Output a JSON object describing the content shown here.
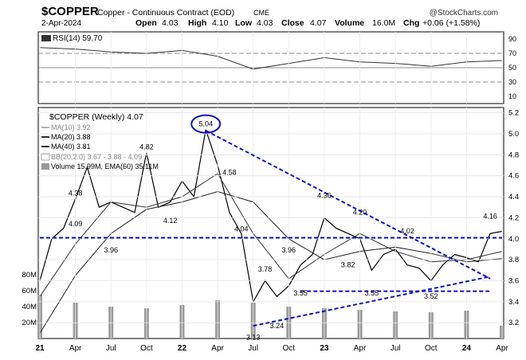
{
  "header": {
    "symbol": "$COPPER",
    "name": "Copper - Continuous Contract (EOD)",
    "exchange": "CME",
    "date": "2-Apr-2024",
    "brand": "@StockCharts.com",
    "quote": {
      "open_label": "Open",
      "open": "4.03",
      "high_label": "High",
      "high": "4.10",
      "low_label": "Low",
      "low": "4.03",
      "close_label": "Close",
      "close": "4.07",
      "volume_label": "Volume",
      "volume": "16.0M",
      "chg_label": "Chg",
      "chg": "+0.06 (+1.58%)"
    }
  },
  "colors": {
    "price": "#000000",
    "ma10": "#b0b0b0",
    "ma20": "#303030",
    "ma40": "#202020",
    "bb": "#a8a8a8",
    "volume": "#9a9a9a",
    "trend": "#1010c8",
    "rsi": "#333333"
  },
  "chart_data": [
    {
      "type": "line",
      "panel": "RSI",
      "legend": "RSI(14) 59.70",
      "ylim": [
        0,
        100
      ],
      "y_ticks": [
        10,
        30,
        50,
        70,
        90
      ],
      "reference_lines": [
        30,
        50,
        70
      ],
      "x": [
        "2021-01",
        "2021-04",
        "2021-07",
        "2021-10",
        "2022-01",
        "2022-04",
        "2022-07",
        "2022-10",
        "2023-01",
        "2023-04",
        "2023-07",
        "2023-10",
        "2024-01",
        "2024-04"
      ],
      "values": [
        78,
        76,
        72,
        70,
        74,
        66,
        48,
        56,
        64,
        58,
        56,
        52,
        58,
        60
      ]
    },
    {
      "type": "line",
      "panel": "price",
      "title": "$COPPER (Weekly) 4.07",
      "ylim": [
        3.05,
        5.25
      ],
      "y_ticks": [
        "3.2",
        "3.4",
        "3.6",
        "3.8",
        "4.0",
        "4.2",
        "4.4",
        "4.6",
        "4.8",
        "5.0",
        "5.2"
      ],
      "x_ticks": [
        "21",
        "Apr",
        "Jul",
        "Oct",
        "22",
        "Apr",
        "Jul",
        "Oct",
        "23",
        "Apr",
        "Jul",
        "Oct",
        "24",
        "Apr"
      ],
      "legend": [
        "$COPPER (Weekly) 4.07",
        "MA(10) 3.92",
        "MA(20) 3.88",
        "MA(40) 3.81",
        "BB(20,2.0) 3.67 - 3.88 - 4.09",
        "Volume 15.99M, EMA(60) 35.11M"
      ],
      "series": [
        {
          "name": "$COPPER (Weekly) 4.07",
          "x": [
            "2021-01",
            "2021-02",
            "2021-03",
            "2021-04",
            "2021-05",
            "2021-06",
            "2021-07",
            "2021-08",
            "2021-09",
            "2021-10",
            "2021-11",
            "2021-12",
            "2022-01",
            "2022-02",
            "2022-03",
            "2022-04",
            "2022-05",
            "2022-06",
            "2022-07",
            "2022-08",
            "2022-09",
            "2022-10",
            "2022-11",
            "2022-12",
            "2023-01",
            "2023-02",
            "2023-03",
            "2023-04",
            "2023-05",
            "2023-06",
            "2023-07",
            "2023-08",
            "2023-09",
            "2023-10",
            "2023-11",
            "2023-12",
            "2024-01",
            "2024-02",
            "2024-03",
            "2024-04"
          ],
          "values": [
            3.6,
            4.0,
            4.1,
            4.38,
            4.68,
            4.3,
            4.35,
            4.3,
            4.25,
            4.82,
            4.3,
            4.35,
            4.55,
            4.4,
            5.04,
            4.7,
            4.25,
            4.05,
            3.4,
            3.6,
            3.45,
            3.55,
            3.75,
            3.85,
            4.2,
            4.1,
            4.05,
            4.0,
            3.7,
            3.85,
            3.9,
            3.75,
            3.72,
            3.6,
            3.75,
            3.85,
            3.82,
            3.78,
            4.05,
            4.07
          ]
        },
        {
          "name": "MA(40) 3.81",
          "x": [
            "2021-01",
            "2021-04",
            "2021-07",
            "2021-10",
            "2022-01",
            "2022-04",
            "2022-07",
            "2022-10",
            "2023-01",
            "2023-04",
            "2023-07",
            "2023-10",
            "2024-01",
            "2024-04"
          ],
          "values": [
            3.1,
            3.65,
            4.05,
            4.28,
            4.35,
            4.45,
            4.35,
            4.0,
            3.8,
            3.88,
            3.92,
            3.86,
            3.78,
            3.81
          ]
        },
        {
          "name": "MA(20) 3.88",
          "x": [
            "2021-01",
            "2021-04",
            "2021-07",
            "2021-10",
            "2022-01",
            "2022-04",
            "2022-07",
            "2022-10",
            "2023-01",
            "2023-04",
            "2023-07",
            "2023-10",
            "2024-01",
            "2024-04"
          ],
          "values": [
            3.45,
            3.95,
            4.35,
            4.3,
            4.4,
            4.62,
            4.05,
            3.62,
            3.85,
            4.05,
            3.88,
            3.78,
            3.8,
            3.88
          ]
        }
      ],
      "annotations": [
        {
          "text": "5.04",
          "x": "2022-03",
          "y": 5.04,
          "circled": true
        },
        {
          "text": "4.82",
          "x": "2021-10",
          "y": 4.82
        },
        {
          "text": "4.38",
          "x": "2021-04",
          "y": 4.38
        },
        {
          "text": "4.58",
          "x": "2022-05",
          "y": 4.58
        },
        {
          "text": "4.09",
          "x": "2021-04",
          "y": 4.09
        },
        {
          "text": "3.96",
          "x": "2021-07",
          "y": 3.96
        },
        {
          "text": "4.12",
          "x": "2021-12",
          "y": 4.12
        },
        {
          "text": "4.04",
          "x": "2022-06",
          "y": 4.04
        },
        {
          "text": "3.78",
          "x": "2022-08",
          "y": 3.78
        },
        {
          "text": "3.96",
          "x": "2022-10",
          "y": 3.96
        },
        {
          "text": "3.55",
          "x": "2022-11",
          "y": 3.55
        },
        {
          "text": "3.13",
          "x": "2022-07",
          "y": 3.13
        },
        {
          "text": "3.24",
          "x": "2022-09",
          "y": 3.24
        },
        {
          "text": "4.36",
          "x": "2023-01",
          "y": 4.36
        },
        {
          "text": "4.20",
          "x": "2023-04",
          "y": 4.2
        },
        {
          "text": "4.02",
          "x": "2023-08",
          "y": 4.02
        },
        {
          "text": "3.82",
          "x": "2023-03",
          "y": 3.82
        },
        {
          "text": "3.55",
          "x": "2023-05",
          "y": 3.55
        },
        {
          "text": "3.52",
          "x": "2023-10",
          "y": 3.52
        },
        {
          "text": "4.16",
          "x": "2024-03",
          "y": 4.16
        }
      ],
      "trend_lines": [
        {
          "from": {
            "x": "2022-03",
            "y": 5.03
          },
          "to": {
            "x": "2024-03",
            "y": 3.62
          }
        },
        {
          "from": {
            "x": "2022-07",
            "y": 3.17
          },
          "to": {
            "x": "2024-03",
            "y": 3.64
          }
        },
        {
          "from": {
            "x": "2021-01",
            "y": 4.01
          },
          "to": {
            "x": "2024-04",
            "y": 4.01
          }
        },
        {
          "from": {
            "x": "2022-11",
            "y": 3.5
          },
          "to": {
            "x": "2024-03",
            "y": 3.5
          }
        }
      ]
    },
    {
      "type": "bar",
      "panel": "volume",
      "ylim": [
        0,
        90
      ],
      "y_ticks": [
        "20M",
        "40M",
        "60M",
        "80M"
      ],
      "x": [
        "2021-01",
        "2021-04",
        "2021-07",
        "2021-10",
        "2022-01",
        "2022-04",
        "2022-07",
        "2022-10",
        "2023-01",
        "2023-04",
        "2023-07",
        "2023-10",
        "2024-01",
        "2024-04"
      ],
      "values": [
        55,
        45,
        40,
        38,
        42,
        48,
        45,
        40,
        38,
        36,
        34,
        33,
        35,
        16
      ]
    }
  ]
}
